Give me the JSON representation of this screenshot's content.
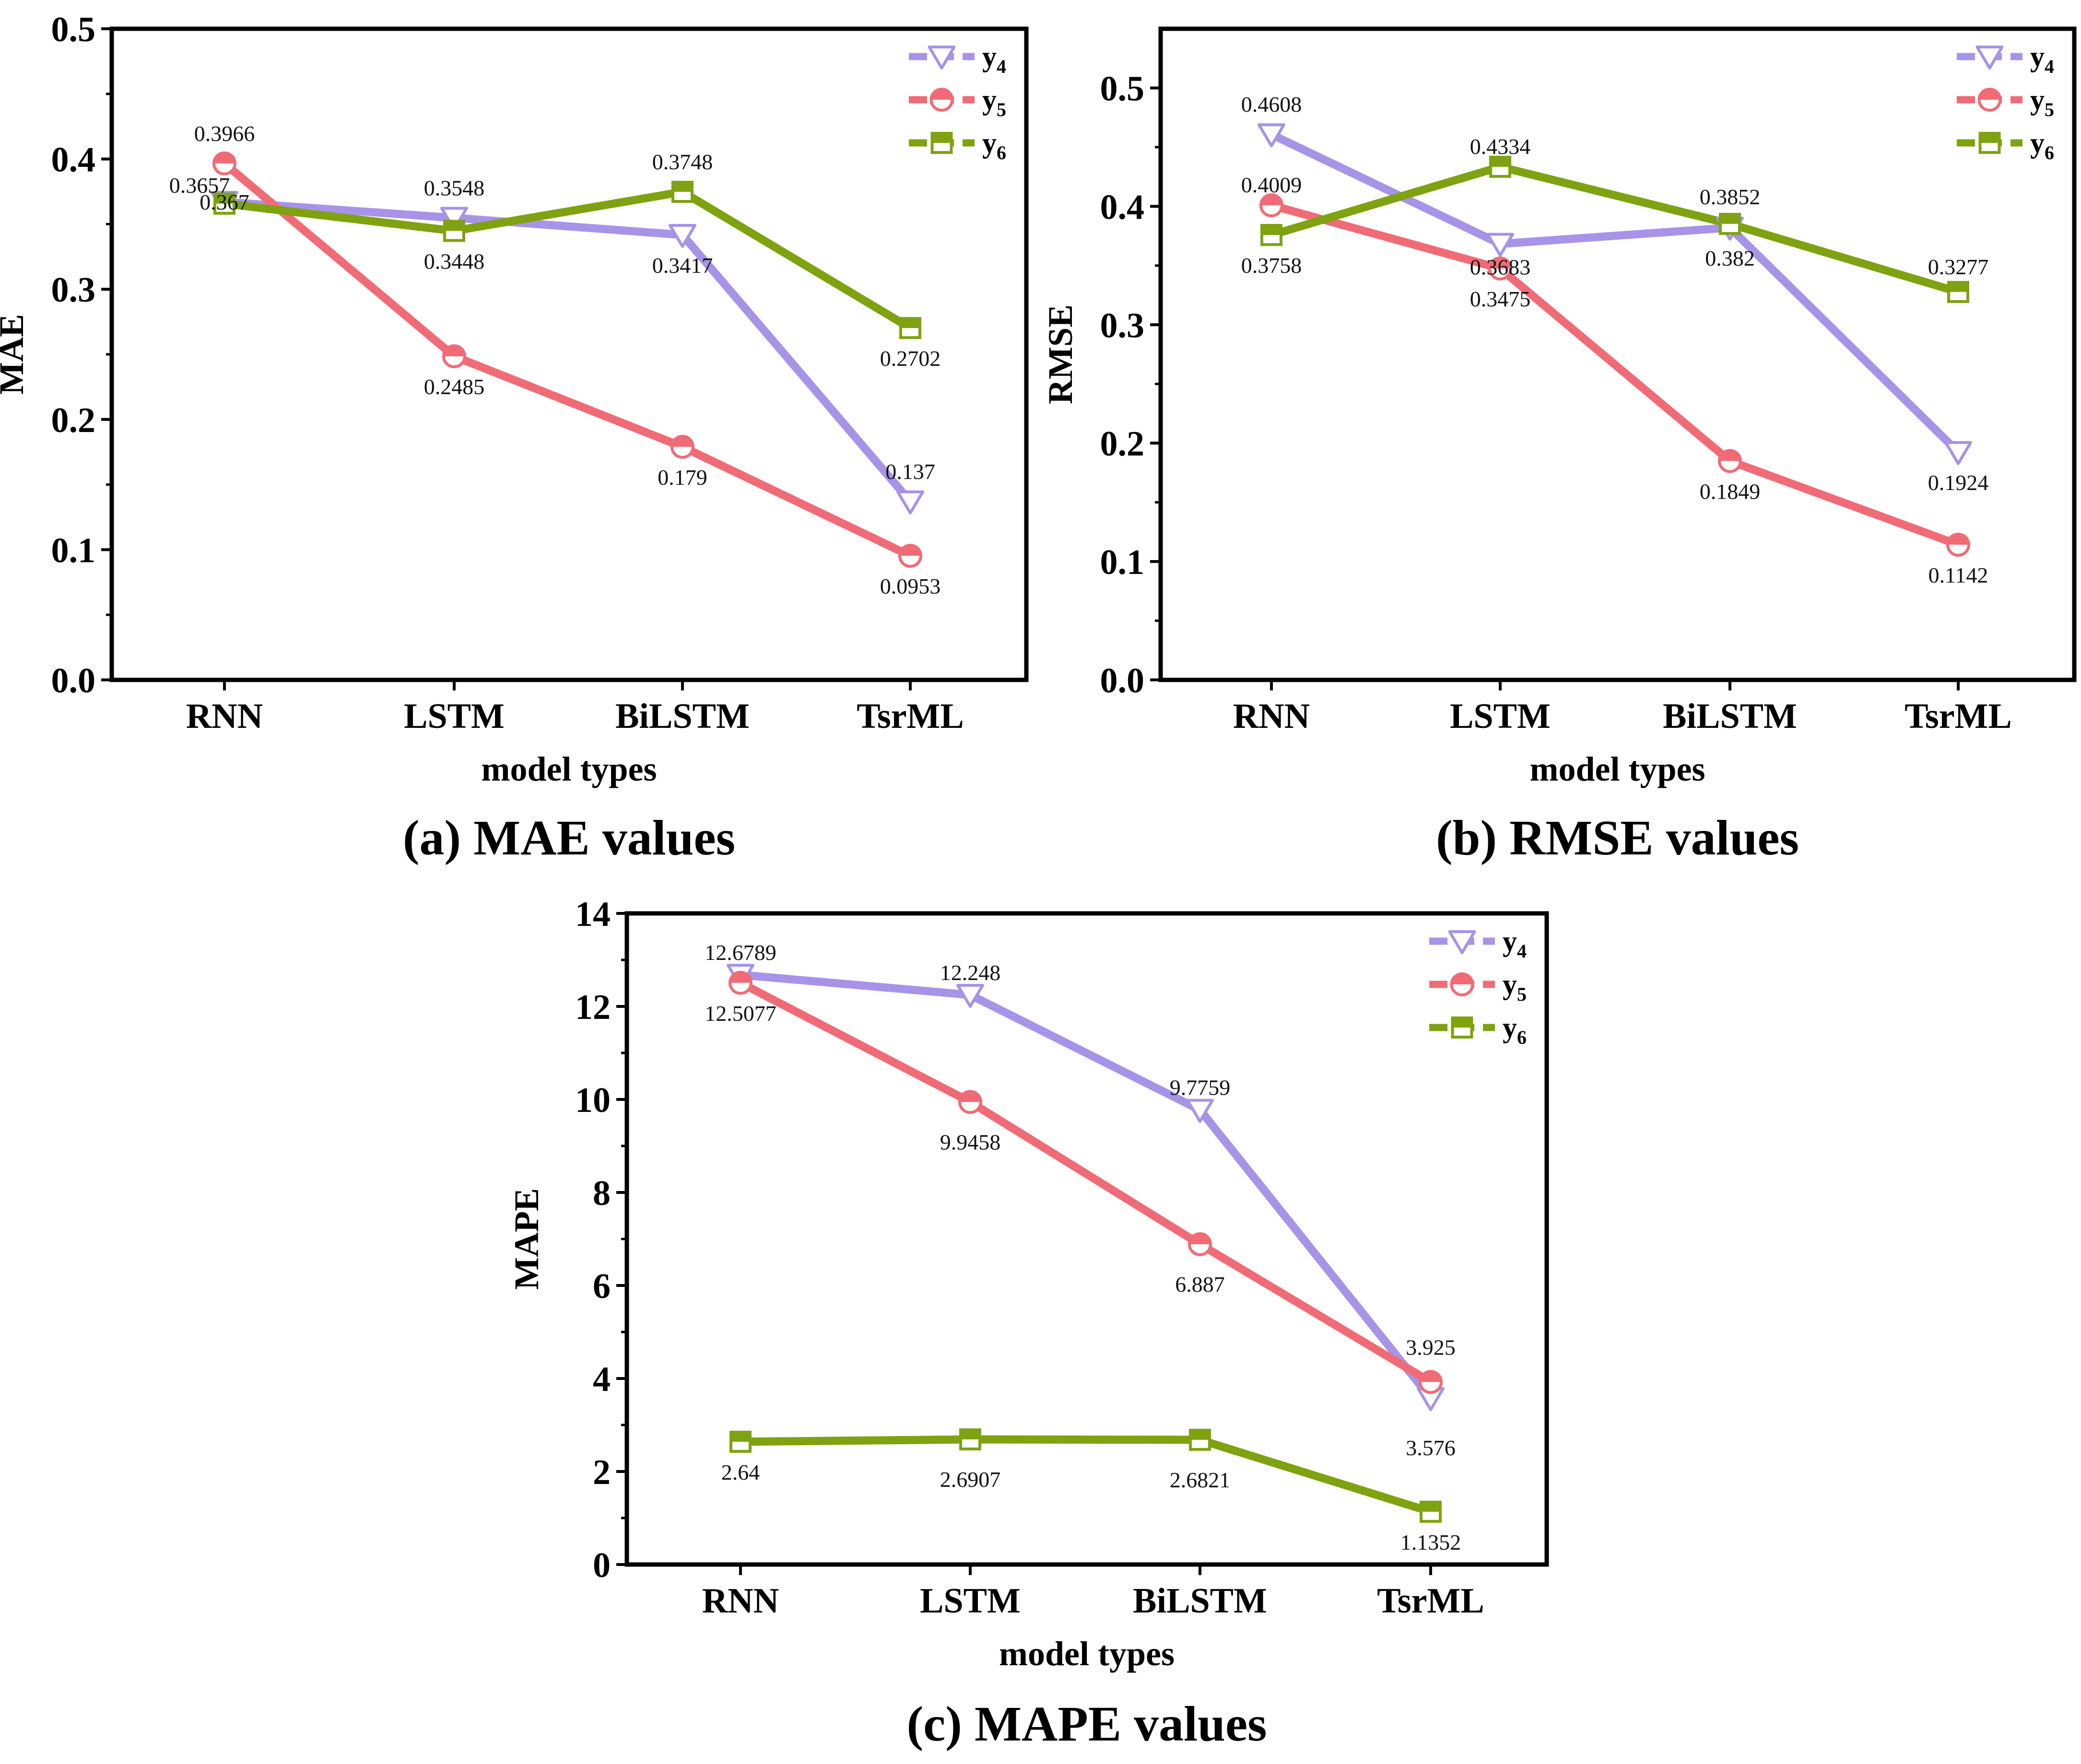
{
  "chart_data": [
    {
      "type": "line",
      "caption": "(a) MAE values",
      "title": "",
      "xlabel": "model types",
      "ylabel": "MAE",
      "categories": [
        "RNN",
        "LSTM",
        "BiLSTM",
        "TsrML"
      ],
      "ylim": [
        0,
        0.5
      ],
      "yticks": [
        "0.0",
        "0.1",
        "0.2",
        "0.3",
        "0.4",
        "0.5"
      ],
      "grid": false,
      "legend_position": "top-right",
      "series": [
        {
          "name": "y4",
          "base": "y",
          "sub": "4",
          "color": "#a793e8",
          "marker": "triangle-down",
          "values": [
            0.367,
            0.3548,
            0.3417,
            0.137
          ],
          "labels": [
            "0.367",
            "0.3548",
            "0.3417",
            "0.137"
          ]
        },
        {
          "name": "y5",
          "base": "y",
          "sub": "5",
          "color": "#f06b76",
          "marker": "circle-half",
          "values": [
            0.3966,
            0.2485,
            0.179,
            0.0953
          ],
          "labels": [
            "0.3966",
            "0.2485",
            "0.179",
            "0.0953"
          ]
        },
        {
          "name": "y6",
          "base": "y",
          "sub": "6",
          "color": "#7ea210",
          "marker": "square-half",
          "values": [
            0.3657,
            0.3448,
            0.3748,
            0.2702
          ],
          "labels": [
            "0.3657",
            "0.3448",
            "0.3748",
            "0.2702"
          ]
        }
      ]
    },
    {
      "type": "line",
      "caption": "(b) RMSE values",
      "title": "",
      "xlabel": "model types",
      "ylabel": "RMSE",
      "categories": [
        "RNN",
        "LSTM",
        "BiLSTM",
        "TsrML"
      ],
      "ylim": [
        0,
        0.55
      ],
      "yticks": [
        "0.0",
        "0.1",
        "0.2",
        "0.3",
        "0.4",
        "0.5"
      ],
      "grid": false,
      "legend_position": "top-right",
      "series": [
        {
          "name": "y4",
          "base": "y",
          "sub": "4",
          "color": "#a793e8",
          "marker": "triangle-down",
          "values": [
            0.4608,
            0.3683,
            0.382,
            0.1924
          ],
          "labels": [
            "0.4608",
            "0.3683",
            "0.382",
            "0.1924"
          ]
        },
        {
          "name": "y5",
          "base": "y",
          "sub": "5",
          "color": "#f06b76",
          "marker": "circle-half",
          "values": [
            0.4009,
            0.3475,
            0.1849,
            0.1142
          ],
          "labels": [
            "0.4009",
            "0.3475",
            "0.1849",
            "0.1142"
          ]
        },
        {
          "name": "y6",
          "base": "y",
          "sub": "6",
          "color": "#7ea210",
          "marker": "square-half",
          "values": [
            0.3758,
            0.4334,
            0.3852,
            0.3277
          ],
          "labels": [
            "0.3758",
            "0.4334",
            "0.3852",
            "0.3277"
          ]
        }
      ]
    },
    {
      "type": "line",
      "caption": "(c) MAPE values",
      "title": "",
      "xlabel": "model types",
      "ylabel": "MAPE",
      "categories": [
        "RNN",
        "LSTM",
        "BiLSTM",
        "TsrML"
      ],
      "ylim": [
        0,
        14
      ],
      "yticks": [
        "0",
        "2",
        "4",
        "6",
        "8",
        "10",
        "12",
        "14"
      ],
      "grid": false,
      "legend_position": "top-right",
      "series": [
        {
          "name": "y4",
          "base": "y",
          "sub": "4",
          "color": "#a793e8",
          "marker": "triangle-down",
          "values": [
            12.6789,
            12.248,
            9.7759,
            3.576
          ],
          "labels": [
            "12.6789",
            "12.248",
            "9.7759",
            "3.576"
          ]
        },
        {
          "name": "y5",
          "base": "y",
          "sub": "5",
          "color": "#f06b76",
          "marker": "circle-half",
          "values": [
            12.5077,
            9.9458,
            6.887,
            3.925
          ],
          "labels": [
            "12.5077",
            "9.9458",
            "6.887",
            "3.925"
          ]
        },
        {
          "name": "y6",
          "base": "y",
          "sub": "6",
          "color": "#7ea210",
          "marker": "square-half",
          "values": [
            2.64,
            2.6907,
            2.6821,
            1.1352
          ],
          "labels": [
            "2.64",
            "2.6907",
            "2.6821",
            "1.1352"
          ]
        }
      ]
    }
  ]
}
